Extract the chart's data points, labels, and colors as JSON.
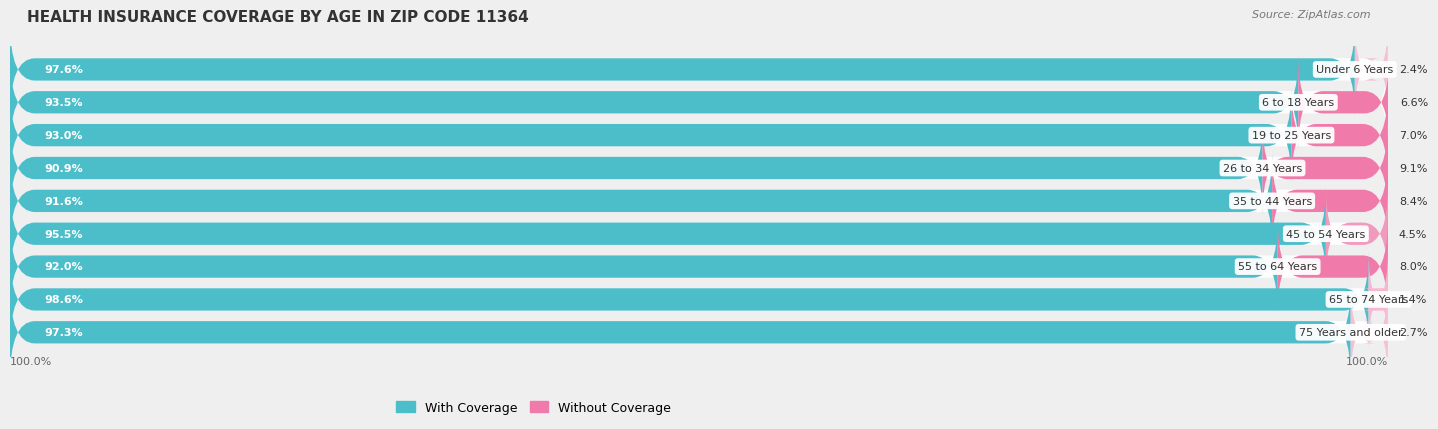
{
  "title": "HEALTH INSURANCE COVERAGE BY AGE IN ZIP CODE 11364",
  "source": "Source: ZipAtlas.com",
  "categories": [
    "Under 6 Years",
    "6 to 18 Years",
    "19 to 25 Years",
    "26 to 34 Years",
    "35 to 44 Years",
    "45 to 54 Years",
    "55 to 64 Years",
    "65 to 74 Years",
    "75 Years and older"
  ],
  "with_coverage": [
    97.6,
    93.5,
    93.0,
    90.9,
    91.6,
    95.5,
    92.0,
    98.6,
    97.3
  ],
  "without_coverage": [
    2.4,
    6.6,
    7.0,
    9.1,
    8.4,
    4.5,
    8.0,
    1.4,
    2.7
  ],
  "color_with": "#4cbec9",
  "color_without": "#f07aaa",
  "color_without_light": "#f5b8d0",
  "bg_color": "#efefef",
  "title_fontsize": 11,
  "label_fontsize": 8.0,
  "source_fontsize": 8,
  "legend_fontsize": 9,
  "axis_label_fontsize": 8,
  "bar_height": 0.68,
  "xlim_max": 100
}
